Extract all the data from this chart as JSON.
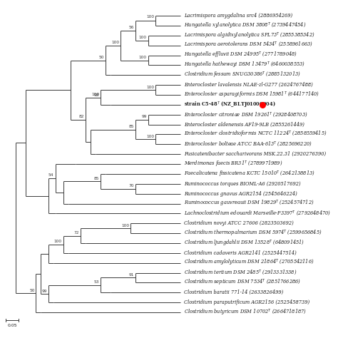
{
  "bg_color": "#ffffff",
  "line_color": "#3a3a3a",
  "taxa": [
    {
      "label": "Lacrimispora amygdalina src4 (2886954269)",
      "y": 1,
      "italic": true
    },
    {
      "label": "Hungatella xylanolytica DSM 3808$^T$ (2739447454)",
      "y": 2,
      "italic": true
    },
    {
      "label": "Lacrimispora algidixylanolytica SPL73$^T$ (2855385342)",
      "y": 3,
      "italic": true
    },
    {
      "label": "Lacrimispora aerotolerans DSM 5434$^T$ (2558961663)",
      "y": 4,
      "italic": true
    },
    {
      "label": "Hungatella effluvii DSM 24995$^T$ (2771789048)",
      "y": 5,
      "italic": true
    },
    {
      "label": "Hungatella hathewayi DSM 13479$^T$ (6460038553)",
      "y": 6,
      "italic": true
    },
    {
      "label": "Clostridium fessum SNUG30386$^T$ (2885132013)",
      "y": 7,
      "italic": true
    },
    {
      "label": "Enterocloster lavalensis NLAE-zl-G277 (2624767488)",
      "y": 8,
      "italic": true
    },
    {
      "label": "Enterocloster asparagiformis DSM 15981$^T$ (644177140)",
      "y": 9,
      "italic": true
    },
    {
      "label": "strain C5-48$^T$ (NZ_BLTJ01000004)",
      "y": 10,
      "italic": false,
      "bold": true,
      "dot": true
    },
    {
      "label": "Enterocloster citroniae DSM 19261$^T$ (2928408703)",
      "y": 11,
      "italic": true
    },
    {
      "label": "Enterocloster aldenensis AF19-9LB (2855261449)",
      "y": 12,
      "italic": true
    },
    {
      "label": "Enterocloster clostridioformis NCTC 11224$^T$ (2858559415)",
      "y": 13,
      "italic": true
    },
    {
      "label": "Enterocloster bolteae ATCC BAA-613$^T$ (2825696220)",
      "y": 14,
      "italic": true
    },
    {
      "label": "Fusicatenibacter saccharivorans MSK.22.31 (2920276390)",
      "y": 15,
      "italic": true
    },
    {
      "label": "Merdimonas faecis BR31$^T$ (2789971989)",
      "y": 16,
      "italic": true
    },
    {
      "label": "Faecalicatena fissicatena KCTC 15010$^T$ (2642138813)",
      "y": 17,
      "italic": true
    },
    {
      "label": "Ruminococcus torques BIOML-A6 (2920517692)",
      "y": 18,
      "italic": true
    },
    {
      "label": "Ruminococcus gnavus AGR2154 (2545646224)",
      "y": 19,
      "italic": true
    },
    {
      "label": "Ruminococcus gauvreauii DSM 19829$^T$ (2524574712)",
      "y": 20,
      "italic": true
    },
    {
      "label": "Lachnoclostridium edouardi Marseille-P3397$^T$ (2792648470)",
      "y": 21,
      "italic": true
    },
    {
      "label": "Clostridium novyi ATCC 27606 (2823503692)",
      "y": 22,
      "italic": true
    },
    {
      "label": "Clostridium thermopalmarium DSM 5974$^T$ (2599656845)",
      "y": 23,
      "italic": true
    },
    {
      "label": "Clostridium ljungdahlii DSM 13528$^T$ (648091451)",
      "y": 24,
      "italic": true
    },
    {
      "label": "Clostridium cadaveris AGR2141 (2525447514)",
      "y": 25,
      "italic": true
    },
    {
      "label": "Clostridium amylolyticum DSM 21864$^T$ (2705542116)",
      "y": 26,
      "italic": true
    },
    {
      "label": "Clostridium tertium DSM 2485$^T$ (2913331338)",
      "y": 27,
      "italic": true
    },
    {
      "label": "Clostridium septicum DSM 7534$^T$ (2851766286)",
      "y": 28,
      "italic": true
    },
    {
      "label": "Clostridium baratii 771-14 (2633826499)",
      "y": 29,
      "italic": true
    },
    {
      "label": "Clostridium paraputrificum AGR2156 (2525458739)",
      "y": 30,
      "italic": true
    },
    {
      "label": "Clostridium butyricum DSM 10702$^T$ (2664718187)",
      "y": 31,
      "italic": true
    }
  ]
}
